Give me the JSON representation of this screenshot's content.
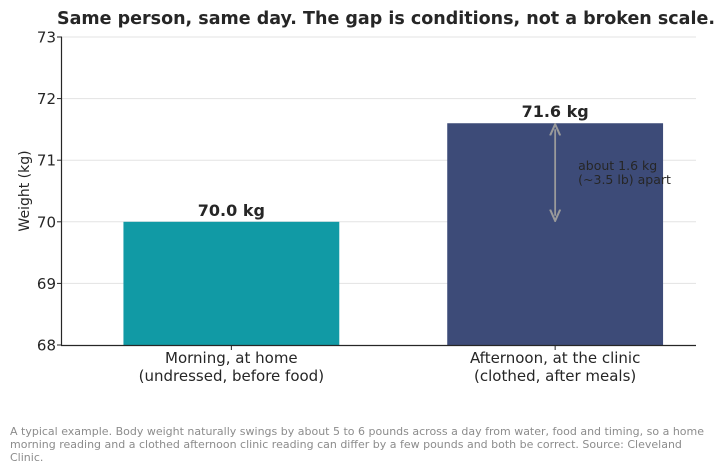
{
  "chart_data": {
    "type": "bar",
    "title": "Same person, same day. The gap is conditions, not a broken scale.",
    "ylabel": "Weight (kg)",
    "xlabel": "",
    "ylim": [
      68,
      73
    ],
    "yticks": [
      68,
      69,
      70,
      71,
      72,
      73
    ],
    "grid": true,
    "categories": [
      [
        "Morning, at home",
        "(undressed, before food)"
      ],
      [
        "Afternoon, at the clinic",
        "(clothed, after meals)"
      ]
    ],
    "values": [
      70.0,
      71.6
    ],
    "data_labels": [
      "70.0 kg",
      "71.6 kg"
    ],
    "colors": [
      "#119aa5",
      "#3d4b78"
    ],
    "annotation": {
      "text": [
        "about 1.6 kg",
        "(~3.5 lb) apart"
      ],
      "arrow_from": 70.0,
      "arrow_to": 71.6,
      "arrow_color": "#9a9a9a"
    }
  },
  "caption": "A typical example. Body weight naturally swings by about 5 to 6 pounds across a day from water, food and timing, so a home morning reading and a clothed afternoon clinic reading can differ by a few pounds and both be correct. Source: Cleveland Clinic."
}
